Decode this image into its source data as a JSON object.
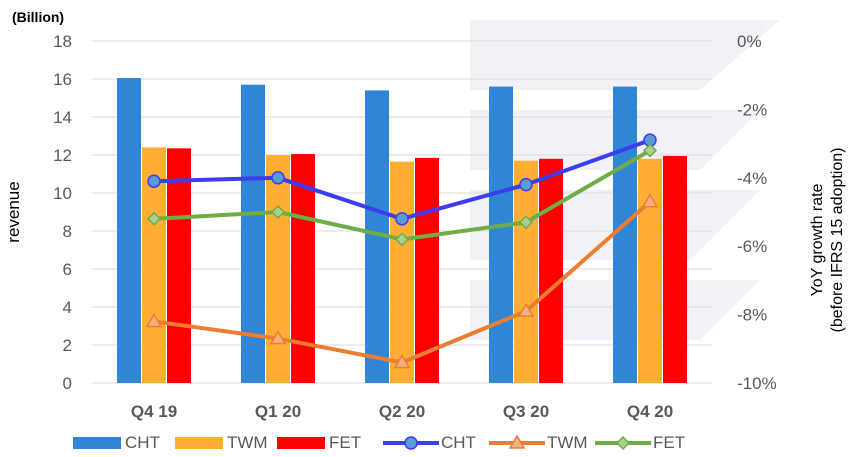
{
  "chart_data": {
    "type": "bar+line",
    "unit_label": "(Billion)",
    "categories": [
      "Q4 19",
      "Q1 20",
      "Q2 20",
      "Q3 20",
      "Q4 20"
    ],
    "ylabel_left": "revenue",
    "ylabel_right_line1": "YoY growth rate",
    "ylabel_right_line2": "(before IFRS  15 adoption)",
    "ylim_left": [
      0,
      18
    ],
    "yticks_left": [
      "0",
      "2",
      "4",
      "6",
      "8",
      "10",
      "12",
      "14",
      "16",
      "18"
    ],
    "ylim_right": [
      -10,
      0
    ],
    "yticks_right": [
      "-10%",
      "-8%",
      "-6%",
      "-4%",
      "-2%",
      "0%"
    ],
    "grid": true,
    "legend_position": "bottom",
    "bar_series": [
      {
        "name": "CHT",
        "color": "#2e86d4",
        "values": [
          16.05,
          15.7,
          15.4,
          15.6,
          15.6
        ]
      },
      {
        "name": "TWM",
        "color": "#ffad33",
        "values": [
          12.4,
          12.0,
          11.65,
          11.7,
          11.8
        ]
      },
      {
        "name": "FET",
        "color": "#ff0000",
        "values": [
          12.35,
          12.05,
          11.85,
          11.8,
          11.95
        ]
      }
    ],
    "line_series": [
      {
        "name": "CHT",
        "color": "#3c3cf0",
        "fill": "#5b9bd5",
        "marker": "circle",
        "values": [
          -4.1,
          -4.0,
          -5.2,
          -4.2,
          -2.9
        ]
      },
      {
        "name": "TWM",
        "color": "#ed7d31",
        "fill": "#f4b183",
        "marker": "triangle",
        "values": [
          -8.2,
          -8.7,
          -9.4,
          -7.9,
          -4.7
        ]
      },
      {
        "name": "FET",
        "color": "#70ad47",
        "fill": "#a9d18e",
        "marker": "diamond",
        "values": [
          -5.2,
          -5.0,
          -5.8,
          -5.3,
          -3.2
        ]
      }
    ]
  }
}
